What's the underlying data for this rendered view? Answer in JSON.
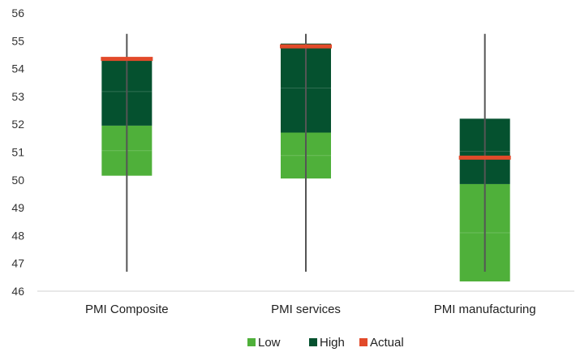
{
  "chart_data": {
    "type": "bar",
    "title": "",
    "xlabel": "",
    "ylabel": "",
    "ylim": [
      46,
      56
    ],
    "yticks": [
      46,
      47,
      48,
      49,
      50,
      51,
      52,
      53,
      54,
      55,
      56
    ],
    "grid": false,
    "legend_position": "bottom",
    "categories": [
      "PMI Composite",
      "PMI services",
      "PMI manufacturing"
    ],
    "series": [
      {
        "name": "Low",
        "color": "#4fb03a",
        "low": [
          50.15,
          50.05,
          46.35
        ],
        "high": [
          51.95,
          51.7,
          49.85
        ]
      },
      {
        "name": "High",
        "color": "#05512f",
        "low": [
          51.95,
          51.7,
          49.85
        ],
        "high": [
          54.4,
          54.9,
          52.2
        ]
      },
      {
        "name": "Actual",
        "color": "#e24a2a",
        "values": [
          54.35,
          54.8,
          50.8
        ]
      }
    ],
    "range_lines": [
      {
        "min": 46.7,
        "max": 55.25
      },
      {
        "min": 46.7,
        "max": 55.25
      },
      {
        "min": 46.7,
        "max": 55.25
      }
    ]
  }
}
